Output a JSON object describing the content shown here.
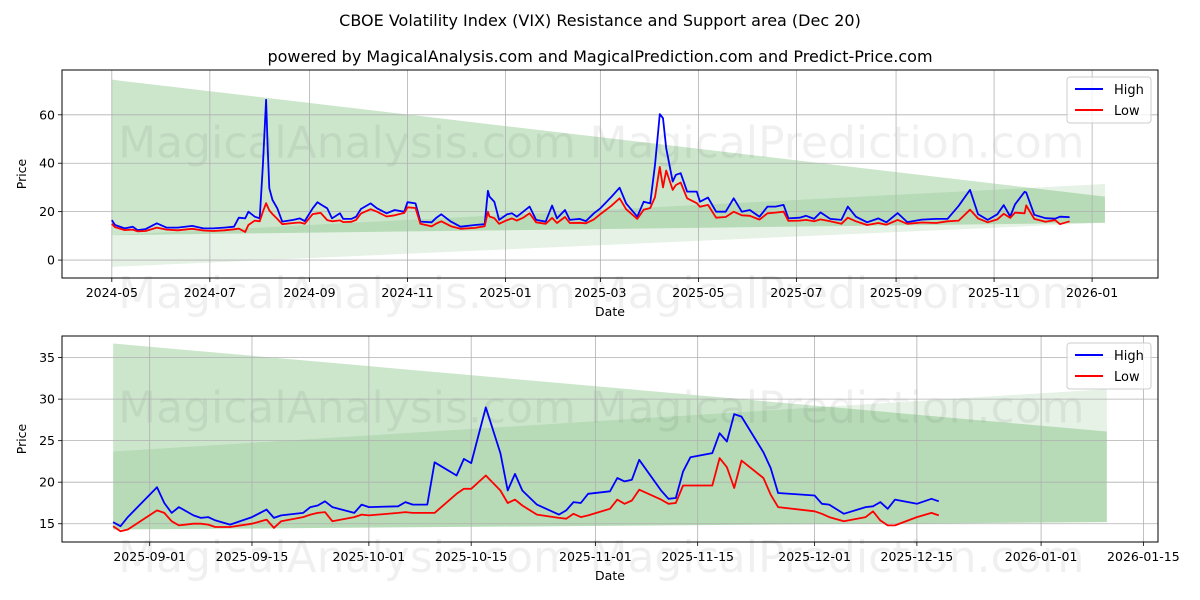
{
  "title": "CBOE Volatility Index (VIX) Resistance and Support area (Dec 20)",
  "subtitle": "powered by MagicalAnalysis.com and MagicalPrediction.com and Predict-Price.com",
  "watermarks": [
    "MagicalAnalysis.com",
    "MagicalPrediction.com"
  ],
  "colors": {
    "high": "#0000ff",
    "low": "#ff0000",
    "band": "#008000",
    "grid": "#b0b0b0"
  },
  "chart_data": [
    {
      "type": "line",
      "xlabel": "Date",
      "ylabel": "Price",
      "xlim": [
        "2024-03-31",
        "2026-02-11"
      ],
      "ylim": [
        -7.4,
        78.5
      ],
      "grid": true,
      "legend": {
        "position": "top-right",
        "entries": [
          "High",
          "Low"
        ]
      },
      "yticks": [
        0,
        20,
        40,
        60
      ],
      "yticklabels": [
        "0",
        "20",
        "40",
        "60"
      ],
      "xticks": [
        "2024-05-01",
        "2024-07-01",
        "2024-09-01",
        "2024-11-01",
        "2025-01-01",
        "2025-03-01",
        "2025-05-01",
        "2025-07-01",
        "2025-09-01",
        "2025-11-01",
        "2026-01-01"
      ],
      "xticklabels": [
        "2024-05",
        "2024-07",
        "2024-09",
        "2024-11",
        "2025-01",
        "2025-03",
        "2025-05",
        "2025-07",
        "2025-09",
        "2025-11",
        "2026-01"
      ],
      "bands": [
        {
          "name": "resistance",
          "x": [
            "2024-05-01",
            "2026-01-09"
          ],
          "lower": [
            10.3,
            15.4
          ],
          "upper": [
            74.5,
            26.2
          ],
          "opacity": 0.2
        },
        {
          "name": "support",
          "x": [
            "2024-05-01",
            "2026-01-09"
          ],
          "lower": [
            -2.8,
            15.4
          ],
          "upper": [
            10.3,
            31.4
          ],
          "opacity": 0.1
        }
      ],
      "x": [
        "2024-05-01",
        "2024-05-03",
        "2024-05-09",
        "2024-05-14",
        "2024-05-17",
        "2024-05-22",
        "2024-05-29",
        "2024-06-04",
        "2024-06-11",
        "2024-06-20",
        "2024-06-27",
        "2024-07-03",
        "2024-07-10",
        "2024-07-16",
        "2024-07-19",
        "2024-07-23",
        "2024-07-25",
        "2024-07-29",
        "2024-08-01",
        "2024-08-03",
        "2024-08-05",
        "2024-08-06",
        "2024-08-07",
        "2024-08-09",
        "2024-08-12",
        "2024-08-15",
        "2024-08-22",
        "2024-08-26",
        "2024-08-29",
        "2024-09-03",
        "2024-09-06",
        "2024-09-08",
        "2024-09-12",
        "2024-09-15",
        "2024-09-20",
        "2024-09-22",
        "2024-09-27",
        "2024-09-30",
        "2024-10-03",
        "2024-10-09",
        "2024-10-13",
        "2024-10-19",
        "2024-10-24",
        "2024-10-30",
        "2024-11-01",
        "2024-11-06",
        "2024-11-09",
        "2024-11-16",
        "2024-11-19",
        "2024-11-22",
        "2024-11-28",
        "2024-12-04",
        "2024-12-13",
        "2024-12-19",
        "2024-12-21",
        "2024-12-22",
        "2024-12-25",
        "2024-12-28",
        "2025-01-02",
        "2025-01-05",
        "2025-01-08",
        "2025-01-12",
        "2025-01-16",
        "2025-01-20",
        "2025-01-26",
        "2025-01-30",
        "2025-02-02",
        "2025-02-07",
        "2025-02-10",
        "2025-02-16",
        "2025-02-20",
        "2025-02-25",
        "2025-03-01",
        "2025-03-08",
        "2025-03-13",
        "2025-03-17",
        "2025-03-24",
        "2025-03-28",
        "2025-04-01",
        "2025-04-04",
        "2025-04-07",
        "2025-04-09",
        "2025-04-11",
        "2025-04-15",
        "2025-04-17",
        "2025-04-20",
        "2025-04-24",
        "2025-04-30",
        "2025-05-02",
        "2025-05-07",
        "2025-05-12",
        "2025-05-18",
        "2025-05-23",
        "2025-05-28",
        "2025-06-02",
        "2025-06-08",
        "2025-06-13",
        "2025-06-18",
        "2025-06-23",
        "2025-06-26",
        "2025-07-03",
        "2025-07-07",
        "2025-07-12",
        "2025-07-16",
        "2025-07-22",
        "2025-07-29",
        "2025-08-02",
        "2025-08-07",
        "2025-08-14",
        "2025-08-21",
        "2025-08-26",
        "2025-09-02",
        "2025-09-08",
        "2025-09-17",
        "2025-09-26",
        "2025-10-03",
        "2025-10-10",
        "2025-10-17",
        "2025-10-22",
        "2025-10-28",
        "2025-11-03",
        "2025-11-07",
        "2025-11-11",
        "2025-11-14",
        "2025-11-20",
        "2025-11-21",
        "2025-11-26",
        "2025-12-03",
        "2025-12-09",
        "2025-12-12",
        "2025-12-18"
      ],
      "series": [
        {
          "name": "High",
          "values": [
            16.5,
            14.5,
            13.1,
            13.8,
            12.4,
            12.8,
            15.2,
            13.4,
            13.4,
            14.1,
            13.1,
            13.1,
            13.4,
            13.8,
            17.5,
            17.2,
            20.0,
            17.9,
            17.2,
            39.3,
            66.2,
            46.2,
            29.7,
            24.8,
            21.4,
            15.9,
            16.6,
            17.2,
            16.1,
            21.4,
            23.9,
            23.0,
            21.4,
            17.2,
            19.3,
            17.0,
            17.0,
            17.9,
            21.1,
            23.4,
            21.4,
            19.3,
            20.7,
            20.0,
            23.9,
            23.4,
            15.9,
            15.6,
            17.5,
            18.9,
            15.9,
            13.8,
            14.5,
            14.8,
            28.6,
            26.2,
            24.1,
            16.6,
            18.9,
            19.3,
            17.9,
            20.0,
            22.1,
            16.6,
            15.9,
            22.5,
            17.2,
            20.7,
            16.6,
            17.0,
            16.1,
            19.3,
            21.4,
            26.2,
            29.9,
            23.4,
            17.9,
            24.1,
            23.4,
            39.3,
            60.3,
            58.6,
            46.2,
            32.4,
            35.2,
            35.9,
            28.3,
            28.3,
            24.1,
            25.8,
            20.0,
            20.0,
            25.5,
            20.0,
            20.7,
            17.9,
            22.1,
            22.1,
            22.8,
            17.2,
            17.5,
            18.3,
            17.0,
            19.7,
            17.0,
            16.6,
            22.1,
            17.9,
            15.6,
            17.2,
            15.6,
            19.4,
            15.7,
            16.7,
            17.0,
            17.0,
            22.4,
            29.0,
            19.0,
            16.6,
            18.9,
            22.7,
            18.0,
            23.0,
            28.2,
            27.9,
            18.7,
            17.3,
            17.1,
            17.9,
            17.7
          ]
        },
        {
          "name": "Low",
          "values": [
            15.0,
            13.6,
            12.4,
            12.6,
            11.9,
            12.0,
            13.4,
            12.6,
            12.3,
            12.9,
            12.2,
            12.0,
            12.3,
            12.7,
            13.0,
            11.6,
            14.5,
            16.3,
            16.0,
            20.0,
            23.5,
            22.0,
            20.5,
            19.0,
            17.0,
            14.8,
            15.3,
            15.5,
            15.0,
            19.0,
            19.3,
            19.5,
            16.5,
            16.0,
            16.4,
            15.7,
            15.8,
            16.6,
            19.2,
            21.0,
            20.0,
            18.0,
            18.5,
            19.5,
            21.8,
            21.5,
            15.0,
            13.9,
            15.1,
            16.0,
            14.0,
            12.9,
            13.3,
            14.0,
            20.0,
            18.0,
            17.3,
            15.0,
            16.5,
            17.2,
            16.3,
            17.5,
            19.3,
            15.6,
            15.0,
            17.4,
            15.3,
            17.8,
            15.3,
            15.4,
            15.2,
            16.8,
            19.0,
            22.5,
            25.5,
            21.0,
            17.0,
            20.8,
            21.5,
            26.0,
            38.5,
            30.0,
            37.0,
            29.0,
            31.0,
            32.0,
            25.5,
            23.5,
            22.0,
            22.8,
            17.5,
            17.8,
            20.0,
            18.5,
            18.3,
            16.7,
            19.3,
            19.6,
            20.0,
            16.2,
            16.3,
            16.6,
            16.0,
            16.8,
            16.0,
            15.0,
            17.5,
            16.0,
            14.5,
            15.3,
            14.6,
            16.6,
            15.0,
            15.5,
            15.3,
            16.0,
            16.3,
            20.8,
            17.2,
            15.6,
            16.8,
            19.1,
            17.4,
            19.6,
            19.3,
            22.6,
            17.0,
            15.8,
            16.5,
            14.8,
            16.0
          ]
        }
      ]
    },
    {
      "type": "line",
      "xlabel": "Date",
      "ylabel": "Price",
      "xlim": [
        "2025-08-20",
        "2026-01-17"
      ],
      "ylim": [
        12.8,
        37.6
      ],
      "grid": true,
      "legend": {
        "position": "top-right",
        "entries": [
          "High",
          "Low"
        ]
      },
      "yticks": [
        15,
        20,
        25,
        30,
        35
      ],
      "yticklabels": [
        "15",
        "20",
        "25",
        "30",
        "35"
      ],
      "xticks": [
        "2025-09-01",
        "2025-09-15",
        "2025-10-01",
        "2025-10-15",
        "2025-11-01",
        "2025-11-15",
        "2025-12-01",
        "2025-12-15",
        "2026-01-01",
        "2026-01-15"
      ],
      "xticklabels": [
        "2025-09-01",
        "2025-09-15",
        "2025-10-01",
        "2025-10-15",
        "2025-11-01",
        "2025-11-15",
        "2025-12-01",
        "2025-12-15",
        "2026-01-01",
        "2026-01-15"
      ],
      "bands": [
        {
          "name": "resistance",
          "x": [
            "2025-08-27",
            "2026-01-10"
          ],
          "lower": [
            14.3,
            15.2
          ],
          "upper": [
            36.7,
            26.1
          ],
          "opacity": 0.2
        },
        {
          "name": "support",
          "x": [
            "2025-08-27",
            "2026-01-10"
          ],
          "lower": [
            14.3,
            15.2
          ],
          "upper": [
            23.7,
            31.2
          ],
          "opacity": 0.1
        }
      ],
      "x": [
        "2025-08-27",
        "2025-08-28",
        "2025-08-29",
        "2025-09-02",
        "2025-09-03",
        "2025-09-04",
        "2025-09-05",
        "2025-09-07",
        "2025-09-08",
        "2025-09-09",
        "2025-09-10",
        "2025-09-12",
        "2025-09-15",
        "2025-09-17",
        "2025-09-18",
        "2025-09-19",
        "2025-09-22",
        "2025-09-23",
        "2025-09-24",
        "2025-09-25",
        "2025-09-26",
        "2025-09-29",
        "2025-09-30",
        "2025-10-01",
        "2025-10-05",
        "2025-10-06",
        "2025-10-07",
        "2025-10-09",
        "2025-10-10",
        "2025-10-13",
        "2025-10-14",
        "2025-10-15",
        "2025-10-17",
        "2025-10-19",
        "2025-10-20",
        "2025-10-21",
        "2025-10-22",
        "2025-10-24",
        "2025-10-27",
        "2025-10-28",
        "2025-10-29",
        "2025-10-30",
        "2025-10-31",
        "2025-11-03",
        "2025-11-04",
        "2025-11-05",
        "2025-11-06",
        "2025-11-07",
        "2025-11-10",
        "2025-11-11",
        "2025-11-12",
        "2025-11-13",
        "2025-11-14",
        "2025-11-17",
        "2025-11-18",
        "2025-11-19",
        "2025-11-20",
        "2025-11-21",
        "2025-11-24",
        "2025-11-25",
        "2025-11-26",
        "2025-12-01",
        "2025-12-02",
        "2025-12-03",
        "2025-12-05",
        "2025-12-08",
        "2025-12-09",
        "2025-12-10",
        "2025-12-11",
        "2025-12-12",
        "2025-12-15",
        "2025-12-17",
        "2025-12-18"
      ],
      "series": [
        {
          "name": "High",
          "values": [
            15.2,
            14.7,
            15.8,
            19.4,
            17.5,
            16.3,
            17.0,
            16.0,
            15.7,
            15.8,
            15.4,
            14.9,
            15.8,
            16.7,
            15.7,
            16.0,
            16.3,
            17.0,
            17.2,
            17.7,
            17.0,
            16.3,
            17.3,
            17.0,
            17.1,
            17.6,
            17.3,
            17.3,
            22.4,
            20.8,
            22.8,
            22.3,
            29.0,
            23.5,
            19.0,
            21.0,
            19.0,
            17.3,
            16.1,
            16.6,
            17.6,
            17.5,
            18.6,
            18.9,
            20.5,
            20.1,
            20.3,
            22.7,
            19.0,
            18.0,
            18.1,
            21.3,
            23.0,
            23.5,
            25.9,
            24.9,
            28.2,
            27.9,
            23.6,
            21.7,
            18.7,
            18.4,
            17.4,
            17.3,
            16.2,
            17.0,
            17.1,
            17.6,
            16.8,
            17.9,
            17.4,
            18.0,
            17.7
          ]
        },
        {
          "name": "Low",
          "values": [
            14.7,
            14.1,
            14.3,
            16.6,
            16.3,
            15.3,
            14.8,
            15.0,
            15.0,
            14.9,
            14.6,
            14.6,
            15.0,
            15.5,
            14.5,
            15.3,
            15.8,
            16.1,
            16.3,
            16.4,
            15.3,
            15.8,
            16.1,
            16.0,
            16.3,
            16.4,
            16.3,
            16.3,
            16.3,
            18.6,
            19.2,
            19.2,
            20.8,
            19.0,
            17.5,
            17.9,
            17.2,
            16.1,
            15.7,
            15.6,
            16.2,
            15.8,
            16.0,
            16.8,
            17.9,
            17.4,
            17.8,
            19.1,
            17.9,
            17.4,
            17.5,
            19.6,
            19.6,
            19.6,
            22.9,
            21.8,
            19.3,
            22.6,
            20.5,
            18.5,
            17.0,
            16.5,
            16.2,
            15.8,
            15.3,
            15.8,
            16.5,
            15.4,
            14.8,
            14.8,
            15.8,
            16.3,
            16.0
          ]
        }
      ]
    }
  ]
}
